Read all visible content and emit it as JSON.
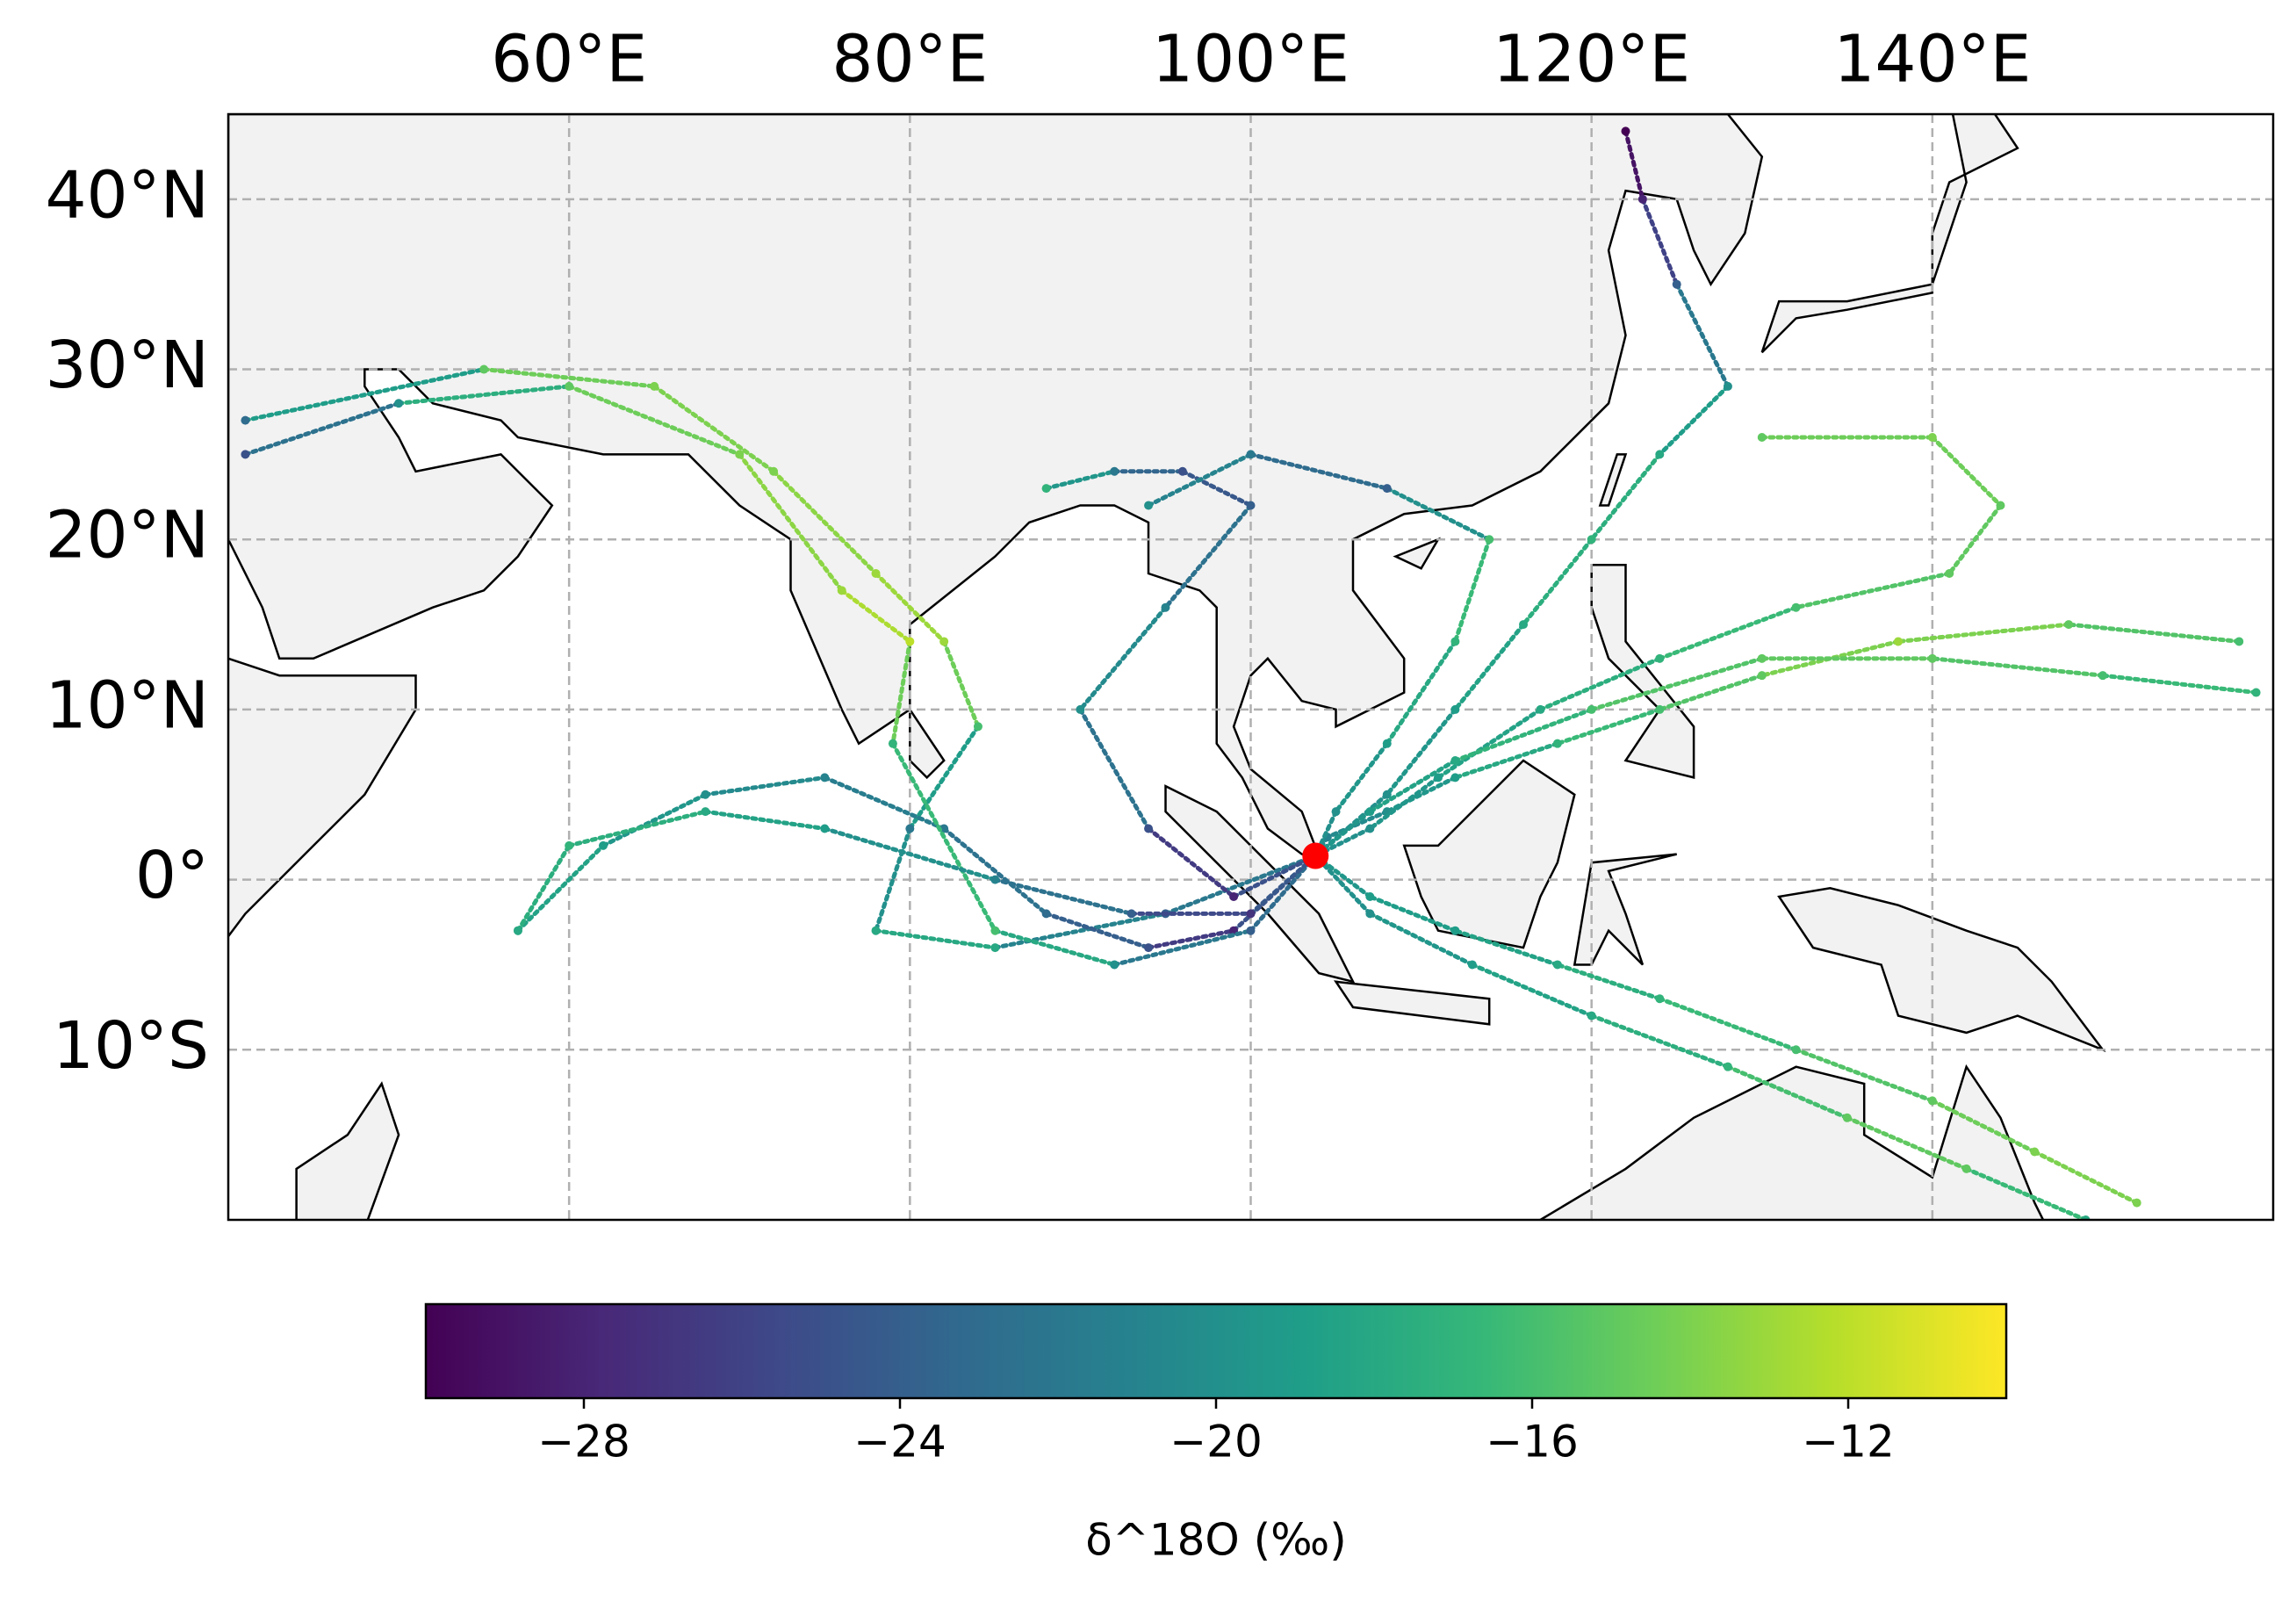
{
  "map": {
    "type": "trajectory-map",
    "xlim": [
      40,
      160
    ],
    "ylim": [
      -20,
      45
    ],
    "xticks": [
      {
        "value": 60,
        "label": "60°E"
      },
      {
        "value": 80,
        "label": "80°E"
      },
      {
        "value": 100,
        "label": "100°E"
      },
      {
        "value": 120,
        "label": "120°E"
      },
      {
        "value": 140,
        "label": "140°E"
      }
    ],
    "yticks": [
      {
        "value": 40,
        "label": "40°N"
      },
      {
        "value": 30,
        "label": "30°N"
      },
      {
        "value": 20,
        "label": "20°N"
      },
      {
        "value": 10,
        "label": "10°N"
      },
      {
        "value": 0,
        "label": "0°"
      },
      {
        "value": -10,
        "label": "10°S"
      }
    ],
    "grid": true,
    "colormap": "viridis",
    "clim": [
      -30,
      -10
    ],
    "colorbar_ticks": [
      {
        "value": -28,
        "label": "−28"
      },
      {
        "value": -24,
        "label": "−24"
      },
      {
        "value": -20,
        "label": "−20"
      },
      {
        "value": -16,
        "label": "−16"
      },
      {
        "value": -12,
        "label": "−12"
      }
    ],
    "colorbar_label": "δ^18O (‰)",
    "site": {
      "lon": 103.8,
      "lat": 1.4,
      "color": "red"
    },
    "trajectories": [
      {
        "lon": [
          41,
          55,
          65,
          72,
          78,
          82,
          84,
          80,
          78,
          85,
          95,
          103.8
        ],
        "lat": [
          27,
          30,
          29,
          24,
          18,
          14,
          9,
          3,
          -3,
          -4,
          -2,
          1.4
        ],
        "d18O": [
          -23,
          -15,
          -14,
          -14,
          -13,
          -13,
          -16,
          -22,
          -18,
          -18,
          -24,
          -20
        ]
      },
      {
        "lon": [
          158,
          148,
          138,
          130,
          124,
          118,
          112,
          108,
          104.5,
          103.8
        ],
        "lat": [
          14,
          15,
          14,
          12,
          10,
          8,
          6,
          4,
          2.5,
          1.4
        ],
        "d18O": [
          -16,
          -15,
          -13,
          -15,
          -16,
          -17,
          -19,
          -20,
          -21,
          -20
        ]
      },
      {
        "lon": [
          130,
          140,
          144,
          141,
          132,
          124,
          117,
          111,
          107,
          103.8
        ],
        "lat": [
          26,
          26,
          22,
          18,
          16,
          13,
          10,
          6,
          3,
          1.4
        ],
        "d18O": [
          -15,
          -14,
          -15,
          -15,
          -16,
          -17,
          -18,
          -19,
          -20,
          -20
        ]
      },
      {
        "lon": [
          152,
          146,
          140,
          132,
          124,
          118,
          112,
          107,
          103.8
        ],
        "lat": [
          -19,
          -16,
          -13,
          -10,
          -7,
          -5,
          -3,
          -1,
          1.4
        ],
        "d18O": [
          -14,
          -14,
          -15,
          -16,
          -17,
          -18,
          -19,
          -19,
          -20
        ]
      },
      {
        "lon": [
          149,
          142,
          135,
          128,
          120,
          113,
          107,
          103.8
        ],
        "lat": [
          -20,
          -17,
          -14,
          -11,
          -8,
          -5,
          -2,
          1.4
        ],
        "d18O": [
          -18,
          -15,
          -15,
          -17,
          -18,
          -19,
          -20,
          -20
        ]
      },
      {
        "lon": [
          122,
          123,
          125,
          128,
          124,
          120,
          116,
          112,
          108,
          103.8
        ],
        "lat": [
          44,
          40,
          35,
          29,
          25,
          20,
          15,
          10,
          5,
          1.4
        ],
        "d18O": [
          -30,
          -28,
          -24,
          -20,
          -18,
          -17,
          -18,
          -19,
          -20,
          -20
        ]
      },
      {
        "lon": [
          88,
          92,
          96,
          100,
          95,
          90,
          94,
          99,
          103.8
        ],
        "lat": [
          23,
          24,
          24,
          22,
          16,
          10,
          3,
          -1,
          1.4
        ],
        "d18O": [
          -17,
          -22,
          -25,
          -24,
          -21,
          -20,
          -25,
          -28,
          -22
        ]
      },
      {
        "lon": [
          57,
          62,
          68,
          75,
          82,
          88,
          94,
          99,
          103.8
        ],
        "lat": [
          -3,
          2,
          5,
          6,
          3,
          -2,
          -4,
          -3,
          1.4
        ],
        "d18O": [
          -18,
          -19,
          -20,
          -21,
          -22,
          -23,
          -25,
          -28,
          -22
        ]
      },
      {
        "lon": [
          94,
          100,
          108,
          114,
          112,
          108,
          105,
          103.8
        ],
        "lat": [
          22,
          25,
          23,
          20,
          14,
          8,
          4,
          1.4
        ],
        "d18O": [
          -20,
          -22,
          -24,
          -16,
          -17,
          -19,
          -20,
          -20
        ]
      },
      {
        "lon": [
          159,
          150,
          140,
          130,
          120,
          112,
          107,
          103.8
        ],
        "lat": [
          11,
          12,
          13,
          13,
          10,
          7,
          4,
          1.4
        ],
        "d18O": [
          -17,
          -16,
          -15,
          -15,
          -16,
          -18,
          -19,
          -20
        ]
      },
      {
        "lon": [
          41,
          50,
          60,
          70,
          76,
          80,
          79,
          85,
          92,
          100,
          103.8
        ],
        "lat": [
          25,
          28,
          29,
          25,
          17,
          14,
          8,
          -3,
          -5,
          -3,
          1.4
        ],
        "d18O": [
          -25,
          -20,
          -15,
          -14,
          -13,
          -12,
          -17,
          -16,
          -20,
          -24,
          -22
        ]
      },
      {
        "lon": [
          57,
          60,
          68,
          75,
          85,
          93,
          100,
          103.8
        ],
        "lat": [
          -3,
          2,
          4,
          3,
          0,
          -2,
          -2,
          1.4
        ],
        "d18O": [
          -18,
          -17,
          -18,
          -19,
          -21,
          -24,
          -27,
          -22
        ]
      }
    ]
  }
}
